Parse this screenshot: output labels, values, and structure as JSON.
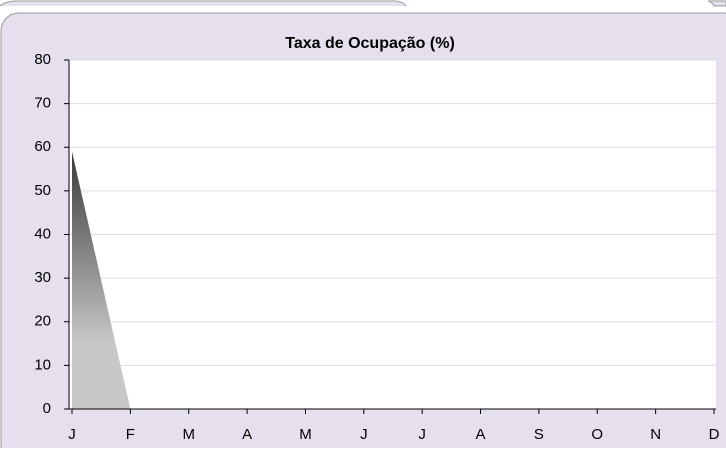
{
  "chart_data": {
    "type": "area",
    "title": "Taxa de Ocupação (%)",
    "categories": [
      "J",
      "F",
      "M",
      "A",
      "M",
      "J",
      "J",
      "A",
      "S",
      "O",
      "N",
      "D"
    ],
    "values": [
      59,
      0,
      0,
      0,
      0,
      0,
      0,
      0,
      0,
      0,
      0,
      0
    ],
    "ylim": [
      0,
      80
    ],
    "yticks": [
      0,
      10,
      20,
      30,
      40,
      50,
      60,
      70,
      80
    ],
    "grid": true,
    "gradient": [
      "#3a3a3a",
      "#c8c8c8"
    ]
  }
}
